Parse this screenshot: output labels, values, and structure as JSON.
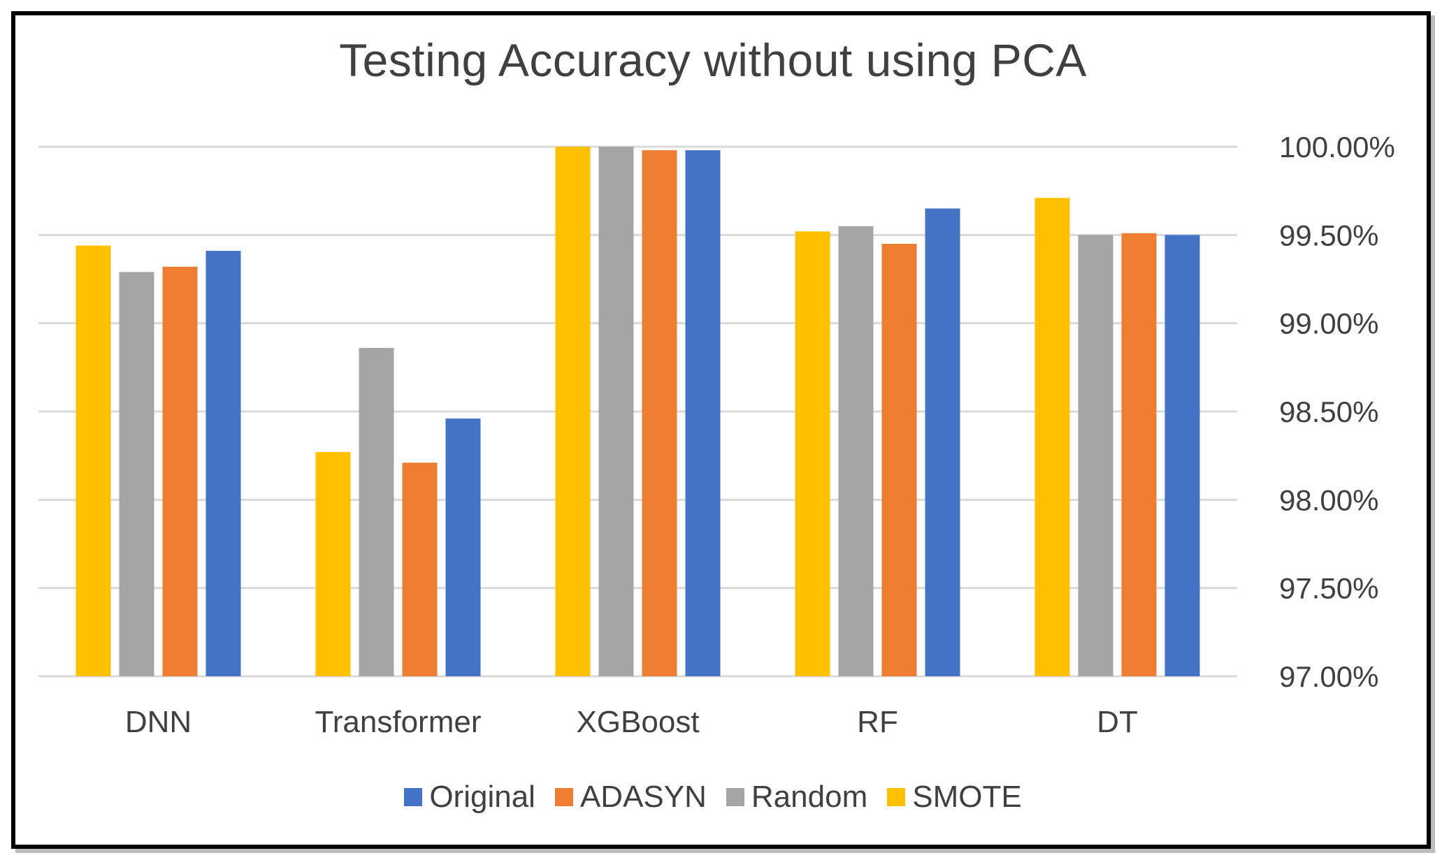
{
  "chart_data": {
    "type": "bar",
    "title": "Testing Accuracy without using PCA",
    "categories": [
      "DNN",
      "Transformer",
      "XGBoost",
      "RF",
      "DT"
    ],
    "series": [
      {
        "name": "SMOTE",
        "color": "#FFC000",
        "values": [
          99.44,
          98.27,
          100.0,
          99.52,
          99.71
        ]
      },
      {
        "name": "Random",
        "color": "#A5A5A5",
        "values": [
          99.29,
          98.86,
          100.0,
          99.55,
          99.5
        ]
      },
      {
        "name": "ADASYN",
        "color": "#ED7D31",
        "values": [
          99.32,
          98.21,
          99.98,
          99.45,
          99.51
        ]
      },
      {
        "name": "Original",
        "color": "#4472C4",
        "values": [
          99.41,
          98.46,
          99.98,
          99.65,
          99.5
        ]
      }
    ],
    "legend_order": [
      "Original",
      "ADASYN",
      "Random",
      "SMOTE"
    ],
    "ylim": [
      97.0,
      100.0
    ],
    "yticks": [
      97.0,
      97.5,
      98.0,
      98.5,
      99.0,
      99.5,
      100.0
    ],
    "ytick_labels": [
      "97.00%",
      "97.50%",
      "98.00%",
      "98.50%",
      "99.00%",
      "99.50%",
      "100.00%"
    ],
    "y_axis_position": "right",
    "grid": true,
    "legend_position": "bottom",
    "xlabel": "",
    "ylabel": ""
  }
}
